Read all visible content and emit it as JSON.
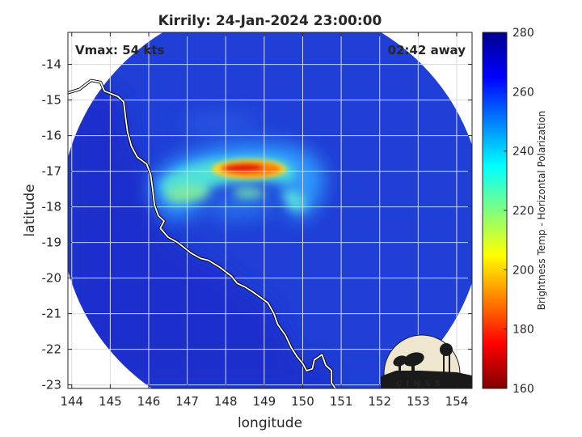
{
  "title": "Kirrily: 24-Jan-2024 23:00:00",
  "annotations": {
    "vmax": "Vmax: 54 kts",
    "away": "02:42 away"
  },
  "axes": {
    "xlabel": "longitude",
    "ylabel": "latitude",
    "xlim": [
      143.9,
      154.4
    ],
    "ylim": [
      -23.1,
      -13.1
    ],
    "xticks": [
      144,
      145,
      146,
      147,
      148,
      149,
      150,
      151,
      152,
      153,
      154
    ],
    "yticks": [
      -14,
      -15,
      -16,
      -17,
      -18,
      -19,
      -20,
      -21,
      -22,
      -23
    ],
    "grid": true
  },
  "colorbar": {
    "label": "Brightness Temp - Horizontal Polarization",
    "range": [
      160,
      280
    ],
    "ticks": [
      280,
      260,
      240,
      220,
      200,
      180,
      160
    ],
    "colormap": "jet"
  },
  "logo": {
    "text": "CIMSS"
  },
  "chart_data": {
    "type": "heatmap",
    "field": "Brightness temperature (K), horizontal polarization",
    "background_value": 265,
    "swath": {
      "center_lon": 149.2,
      "center_lat": -18.2,
      "radius_deg": 5.5
    },
    "features": [
      {
        "feature": "coldest convection core",
        "lon": [
          147.8,
          150.2
        ],
        "lat": [
          -17.3,
          -16.7
        ],
        "value": 185
      },
      {
        "feature": "main rain band",
        "lon": [
          146.3,
          150.6
        ],
        "lat": [
          -18.3,
          -16.5
        ],
        "value": 220
      },
      {
        "feature": "spiral band near coast",
        "lon": [
          146.0,
          147.6
        ],
        "lat": [
          -18.7,
          -17.5
        ],
        "value": 232
      },
      {
        "feature": "land (cold surface)",
        "lon": [
          143.9,
          146.4
        ],
        "lat": [
          -23.1,
          -13.9
        ],
        "value": 255
      }
    ],
    "coastline": [
      [
        143.9,
        -14.8
      ],
      [
        144.2,
        -14.7
      ],
      [
        144.5,
        -14.45
      ],
      [
        144.75,
        -14.5
      ],
      [
        144.85,
        -14.75
      ],
      [
        145.2,
        -14.9
      ],
      [
        145.35,
        -15.05
      ],
      [
        145.4,
        -15.5
      ],
      [
        145.45,
        -15.9
      ],
      [
        145.55,
        -16.3
      ],
      [
        145.7,
        -16.6
      ],
      [
        145.95,
        -16.8
      ],
      [
        146.05,
        -17.1
      ],
      [
        146.1,
        -17.5
      ],
      [
        146.15,
        -17.95
      ],
      [
        146.25,
        -18.25
      ],
      [
        146.4,
        -18.4
      ],
      [
        146.3,
        -18.6
      ],
      [
        146.5,
        -18.85
      ],
      [
        146.75,
        -19.0
      ],
      [
        147.1,
        -19.3
      ],
      [
        147.35,
        -19.45
      ],
      [
        147.55,
        -19.5
      ],
      [
        147.85,
        -19.7
      ],
      [
        148.15,
        -19.95
      ],
      [
        148.3,
        -20.15
      ],
      [
        148.5,
        -20.25
      ],
      [
        148.65,
        -20.35
      ],
      [
        148.85,
        -20.5
      ],
      [
        149.1,
        -20.7
      ],
      [
        149.25,
        -21.0
      ],
      [
        149.35,
        -21.3
      ],
      [
        149.55,
        -21.6
      ],
      [
        149.7,
        -21.95
      ],
      [
        149.85,
        -22.2
      ],
      [
        150.0,
        -22.4
      ],
      [
        150.1,
        -22.6
      ],
      [
        150.25,
        -22.55
      ],
      [
        150.3,
        -22.3
      ],
      [
        150.5,
        -22.15
      ],
      [
        150.6,
        -22.45
      ],
      [
        150.75,
        -22.6
      ],
      [
        150.75,
        -22.95
      ],
      [
        150.85,
        -23.1
      ]
    ]
  }
}
